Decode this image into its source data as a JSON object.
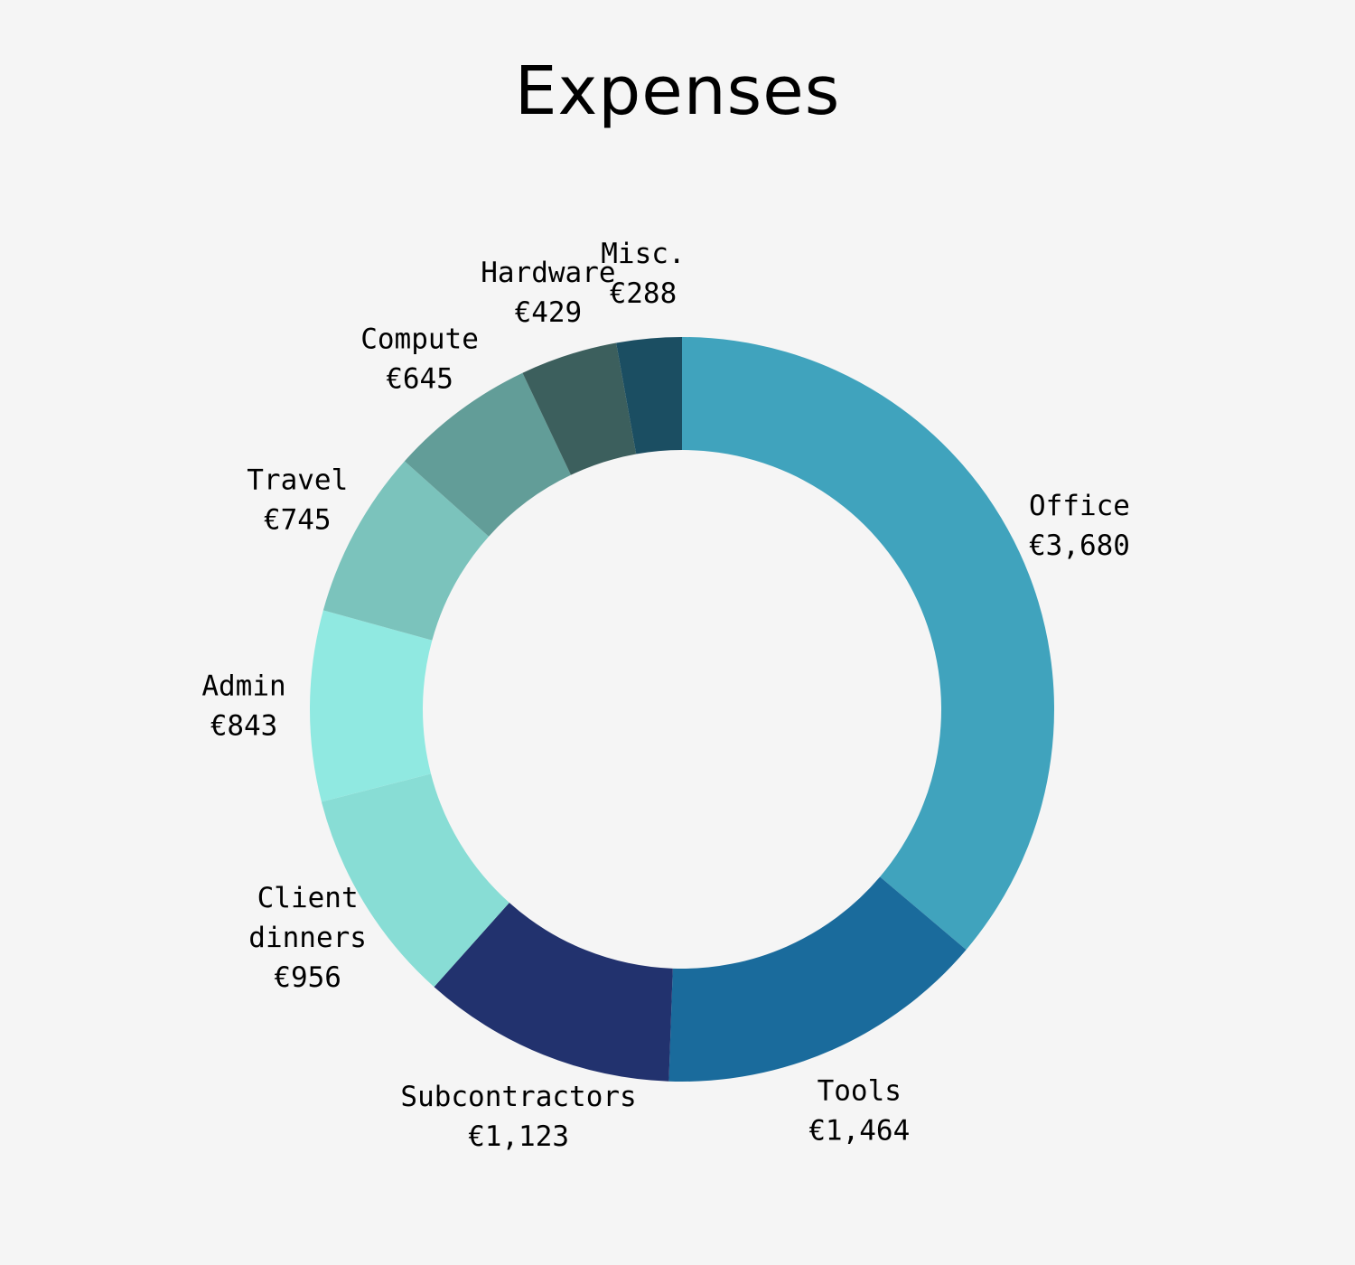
{
  "chart_data": {
    "type": "pie",
    "variant": "donut",
    "title": "Expenses",
    "currency_symbol": "€",
    "slices": [
      {
        "category": "Office",
        "label_lines": [
          "Office"
        ],
        "value": 3680,
        "value_label": "€3,680",
        "color": "#40a3bd"
      },
      {
        "category": "Tools",
        "label_lines": [
          "Tools"
        ],
        "value": 1464,
        "value_label": "€1,464",
        "color": "#1a6b9c"
      },
      {
        "category": "Subcontractors",
        "label_lines": [
          "Subcontractors"
        ],
        "value": 1123,
        "value_label": "€1,123",
        "color": "#22326e"
      },
      {
        "category": "Client dinners",
        "label_lines": [
          "Client",
          "dinners"
        ],
        "value": 956,
        "value_label": "€956",
        "color": "#88ddd5"
      },
      {
        "category": "Admin",
        "label_lines": [
          "Admin"
        ],
        "value": 843,
        "value_label": "€843",
        "color": "#90e9e1"
      },
      {
        "category": "Travel",
        "label_lines": [
          "Travel"
        ],
        "value": 745,
        "value_label": "€745",
        "color": "#7bc3bc"
      },
      {
        "category": "Compute",
        "label_lines": [
          "Compute"
        ],
        "value": 645,
        "value_label": "€645",
        "color": "#629d98"
      },
      {
        "category": "Hardware",
        "label_lines": [
          "Hardware"
        ],
        "value": 429,
        "value_label": "€429",
        "color": "#3c5f5d"
      },
      {
        "category": "Misc.",
        "label_lines": [
          "Misc."
        ],
        "value": 288,
        "value_label": "€288",
        "color": "#1b4e62"
      }
    ],
    "start_angle": "12 o'clock",
    "direction": "clockwise",
    "labels_outside": true,
    "legend": "none"
  }
}
